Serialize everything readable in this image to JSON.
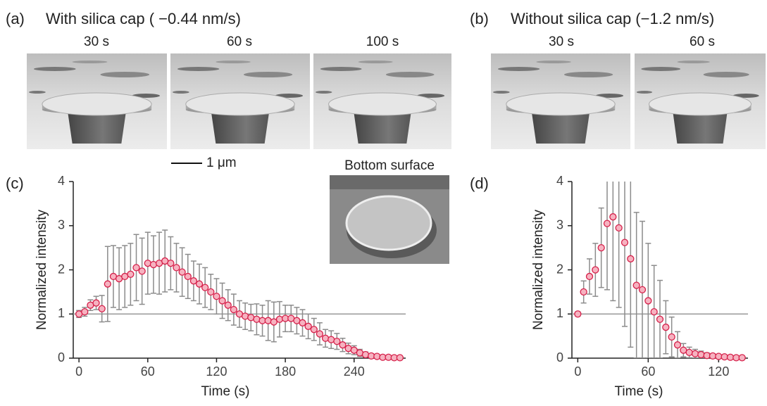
{
  "panel_a": {
    "label": "(a)",
    "title": "With silica cap ( −0.44 nm/s)",
    "frames": [
      "30 s",
      "60 s",
      "100 s"
    ]
  },
  "panel_b": {
    "label": "(b)",
    "title": "Without silica cap (−1.2 nm/s)",
    "frames": [
      "30 s",
      "60 s"
    ]
  },
  "scale_bar": "1 μm",
  "inset": "Bottom surface",
  "chart_data": [
    {
      "type": "scatter",
      "label": "(c)",
      "xlabel": "Time (s)",
      "ylabel": "Normalized intensity",
      "x": [
        0,
        5,
        10,
        15,
        20,
        25,
        30,
        35,
        40,
        45,
        50,
        55,
        60,
        65,
        70,
        75,
        80,
        85,
        90,
        95,
        100,
        105,
        110,
        115,
        120,
        125,
        130,
        135,
        140,
        145,
        150,
        155,
        160,
        165,
        170,
        175,
        180,
        185,
        190,
        195,
        200,
        205,
        210,
        215,
        220,
        225,
        230,
        235,
        240,
        245,
        250,
        255,
        260,
        265,
        270,
        275,
        280
      ],
      "series": [
        {
          "color": "#d6204a",
          "values": [
            1.0,
            1.05,
            1.2,
            1.25,
            1.12,
            1.68,
            1.85,
            1.8,
            1.85,
            1.9,
            2.05,
            1.97,
            2.15,
            2.12,
            2.15,
            2.2,
            2.15,
            2.05,
            1.95,
            1.85,
            1.75,
            1.68,
            1.6,
            1.5,
            1.4,
            1.3,
            1.2,
            1.1,
            1.0,
            0.95,
            0.92,
            0.88,
            0.85,
            0.85,
            0.82,
            0.88,
            0.9,
            0.9,
            0.85,
            0.8,
            0.72,
            0.65,
            0.55,
            0.45,
            0.42,
            0.38,
            0.3,
            0.22,
            0.18,
            0.12,
            0.08,
            0.05,
            0.04,
            0.02,
            0.02,
            0.01,
            0.01
          ],
          "errors": [
            0.08,
            0.1,
            0.12,
            0.15,
            0.3,
            0.85,
            0.7,
            0.7,
            0.7,
            0.7,
            0.75,
            0.75,
            0.7,
            0.65,
            0.7,
            0.7,
            0.6,
            0.55,
            0.55,
            0.5,
            0.45,
            0.45,
            0.45,
            0.4,
            0.4,
            0.4,
            0.35,
            0.35,
            0.3,
            0.3,
            0.3,
            0.35,
            0.35,
            0.45,
            0.45,
            0.4,
            0.3,
            0.3,
            0.3,
            0.3,
            0.28,
            0.25,
            0.25,
            0.2,
            0.2,
            0.18,
            0.15,
            0.12,
            0.1,
            0.08,
            0.06,
            0.05,
            0.04,
            0.03,
            0.02,
            0.02,
            0.01
          ]
        }
      ],
      "hline": 1,
      "xlim": [
        -5,
        285
      ],
      "xticks": [
        0,
        60,
        120,
        180,
        240
      ],
      "ylim": [
        0,
        4
      ],
      "yticks": [
        0,
        1,
        2,
        3,
        4
      ]
    },
    {
      "type": "scatter",
      "label": "(d)",
      "xlabel": "Time (s)",
      "ylabel": "Normalized intensity",
      "x": [
        0,
        5,
        10,
        15,
        20,
        25,
        30,
        35,
        40,
        45,
        50,
        55,
        60,
        65,
        70,
        75,
        80,
        85,
        90,
        95,
        100,
        105,
        110,
        115,
        120,
        125,
        130,
        135,
        140
      ],
      "series": [
        {
          "color": "#d6204a",
          "values": [
            1.0,
            1.5,
            1.85,
            2.0,
            2.5,
            3.05,
            3.2,
            2.95,
            2.62,
            2.25,
            1.65,
            1.55,
            1.3,
            1.05,
            0.88,
            0.7,
            0.48,
            0.3,
            0.18,
            0.13,
            0.1,
            0.08,
            0.06,
            0.05,
            0.04,
            0.03,
            0.02,
            0.01,
            0.01
          ],
          "errors": [
            0.05,
            0.25,
            0.4,
            0.6,
            0.9,
            1.5,
            1.9,
            1.8,
            1.9,
            2.0,
            1.65,
            1.55,
            1.3,
            1.05,
            0.88,
            0.6,
            0.45,
            0.3,
            0.15,
            0.12,
            0.1,
            0.08,
            0.06,
            0.05,
            0.04,
            0.03,
            0.02,
            0.02,
            0.01
          ]
        }
      ],
      "hline": 1,
      "xlim": [
        -5,
        145
      ],
      "xticks": [
        0,
        60,
        120
      ],
      "ylim": [
        0,
        4
      ],
      "yticks": [
        0,
        1,
        2,
        3,
        4
      ]
    }
  ]
}
